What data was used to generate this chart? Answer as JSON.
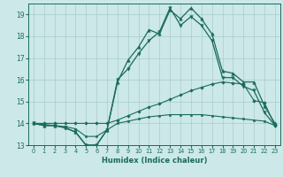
{
  "xlabel": "Humidex (Indice chaleur)",
  "xlim": [
    -0.5,
    23.5
  ],
  "ylim": [
    13,
    19.5
  ],
  "yticks": [
    13,
    14,
    15,
    16,
    17,
    18,
    19
  ],
  "xticks": [
    0,
    1,
    2,
    3,
    4,
    5,
    6,
    7,
    8,
    9,
    10,
    11,
    12,
    13,
    14,
    15,
    16,
    17,
    18,
    19,
    20,
    21,
    22,
    23
  ],
  "bg_color": "#cce8e8",
  "grid_color": "#aacccc",
  "line_color": "#1a6b5a",
  "lines": [
    {
      "x": [
        0,
        1,
        2,
        3,
        4,
        5,
        6,
        7,
        8,
        9,
        10,
        11,
        12,
        13,
        14,
        15,
        16,
        17,
        18,
        19,
        20,
        21,
        22,
        23
      ],
      "y": [
        14.0,
        13.9,
        13.9,
        13.8,
        13.6,
        13.0,
        13.0,
        13.7,
        15.9,
        16.9,
        17.5,
        18.3,
        18.1,
        19.2,
        18.8,
        19.3,
        18.8,
        18.1,
        16.4,
        16.3,
        15.9,
        15.9,
        14.8,
        14.0
      ],
      "marker": "^",
      "markersize": 2.5,
      "linewidth": 0.9
    },
    {
      "x": [
        0,
        1,
        2,
        3,
        4,
        5,
        6,
        7,
        8,
        9,
        10,
        11,
        12,
        13,
        14,
        15,
        16,
        17,
        18,
        19,
        20,
        21,
        22,
        23
      ],
      "y": [
        14.0,
        13.9,
        13.9,
        13.8,
        13.6,
        13.0,
        13.0,
        13.7,
        16.0,
        16.5,
        17.2,
        17.8,
        18.2,
        19.3,
        18.5,
        18.9,
        18.5,
        17.8,
        16.1,
        16.1,
        15.7,
        15.5,
        14.5,
        13.9
      ],
      "marker": "v",
      "markersize": 2.5,
      "linewidth": 0.9
    },
    {
      "x": [
        0,
        1,
        2,
        3,
        4,
        5,
        6,
        7,
        8,
        9,
        10,
        11,
        12,
        13,
        14,
        15,
        16,
        17,
        18,
        19,
        20,
        21,
        22,
        23
      ],
      "y": [
        14.0,
        14.0,
        14.0,
        14.0,
        14.0,
        14.0,
        14.0,
        14.0,
        14.15,
        14.35,
        14.55,
        14.75,
        14.9,
        15.1,
        15.3,
        15.5,
        15.65,
        15.8,
        15.9,
        15.85,
        15.8,
        15.05,
        14.95,
        13.9
      ],
      "marker": "D",
      "markersize": 1.8,
      "linewidth": 0.8
    },
    {
      "x": [
        0,
        1,
        2,
        3,
        4,
        5,
        6,
        7,
        8,
        9,
        10,
        11,
        12,
        13,
        14,
        15,
        16,
        17,
        18,
        19,
        20,
        21,
        22,
        23
      ],
      "y": [
        14.0,
        13.95,
        13.9,
        13.85,
        13.75,
        13.4,
        13.4,
        13.7,
        14.0,
        14.1,
        14.2,
        14.3,
        14.35,
        14.4,
        14.4,
        14.4,
        14.4,
        14.35,
        14.3,
        14.25,
        14.2,
        14.15,
        14.1,
        13.9
      ],
      "marker": "s",
      "markersize": 1.8,
      "linewidth": 0.8
    }
  ]
}
